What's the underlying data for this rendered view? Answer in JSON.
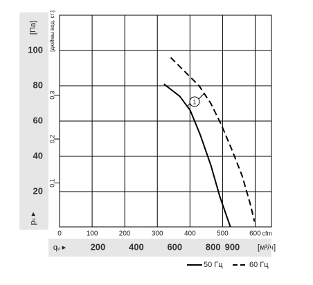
{
  "chart_data": {
    "type": "line",
    "y_unit": "[Па]",
    "y_label": "pₛ ▸",
    "y2_label": "[дюймы вод. ст.]",
    "x_label": "qᵥ ▸",
    "x_unit": "cfm",
    "x2_unit": "[м³/ч]",
    "annotation": "1",
    "xlim": [
      0,
      650
    ],
    "xticks": [
      0,
      100,
      200,
      300,
      400,
      500,
      600
    ],
    "x2lim": [
      0,
      1104
    ],
    "x2ticks": [
      200,
      400,
      600,
      800,
      900
    ],
    "ylim": [
      0,
      120
    ],
    "yticks": [
      20,
      40,
      60,
      80,
      100
    ],
    "y2lim": [
      0,
      0.482
    ],
    "y2ticks": [
      0.1,
      0.2,
      0.3
    ],
    "grid": true,
    "series": [
      {
        "name": "50 Гц",
        "color": "#000000",
        "dash": false,
        "x": [
          320,
          369,
          401,
          432,
          464,
          492,
          524
        ],
        "values": [
          81,
          74,
          66,
          52,
          35,
          17,
          0
        ]
      },
      {
        "name": "60 Гц",
        "color": "#000000",
        "dash": true,
        "x": [
          341,
          390,
          428,
          464,
          496,
          528,
          560,
          585,
          598
        ],
        "values": [
          96,
          87,
          80,
          70,
          58,
          44,
          29,
          13,
          3
        ]
      }
    ]
  }
}
